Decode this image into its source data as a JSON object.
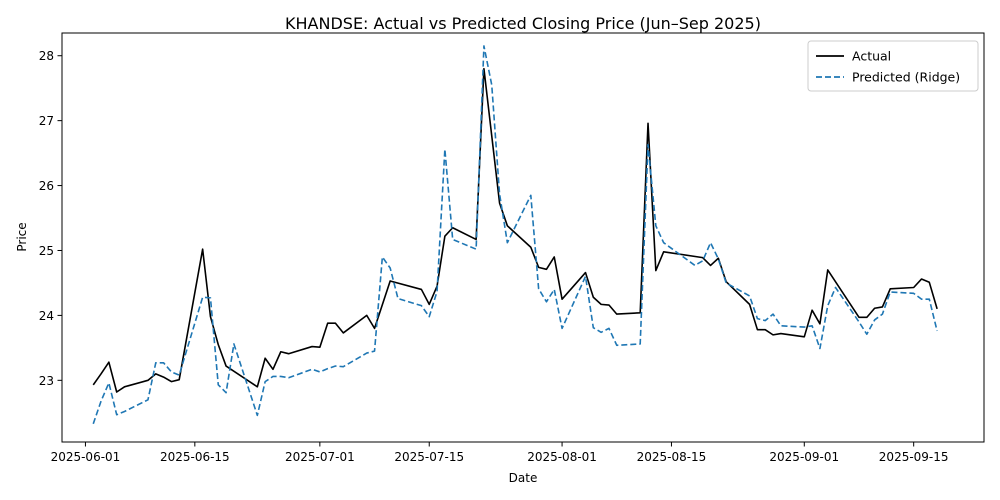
{
  "chart_data": {
    "type": "line",
    "title": "KHANDSE: Actual vs Predicted Closing Price (Jun–Sep 2025)",
    "xlabel": "Date",
    "ylabel": "Price",
    "xlim": [
      "2025-05-29",
      "2025-09-24"
    ],
    "ylim": [
      22.05,
      28.35
    ],
    "x_ticks": [
      "2025-06-01",
      "2025-06-15",
      "2025-07-01",
      "2025-07-15",
      "2025-08-01",
      "2025-08-15",
      "2025-09-01",
      "2025-09-15"
    ],
    "y_ticks": [
      23,
      24,
      25,
      26,
      27,
      28
    ],
    "grid": false,
    "legend": "top-right",
    "colors": {
      "actual": "#000000",
      "predicted": "#1f77b4"
    },
    "series": [
      {
        "name": "Actual",
        "style": "solid",
        "points": [
          [
            "2025-06-02",
            22.93
          ],
          [
            "2025-06-03",
            23.1
          ],
          [
            "2025-06-04",
            23.28
          ],
          [
            "2025-06-05",
            22.82
          ],
          [
            "2025-06-06",
            22.9
          ],
          [
            "2025-06-09",
            23.0
          ],
          [
            "2025-06-10",
            23.1
          ],
          [
            "2025-06-11",
            23.05
          ],
          [
            "2025-06-12",
            22.98
          ],
          [
            "2025-06-13",
            23.01
          ],
          [
            "2025-06-16",
            25.02
          ],
          [
            "2025-06-17",
            23.98
          ],
          [
            "2025-06-18",
            23.55
          ],
          [
            "2025-06-19",
            23.22
          ],
          [
            "2025-06-23",
            22.9
          ],
          [
            "2025-06-24",
            23.34
          ],
          [
            "2025-06-25",
            23.17
          ],
          [
            "2025-06-26",
            23.44
          ],
          [
            "2025-06-27",
            23.41
          ],
          [
            "2025-06-30",
            23.52
          ],
          [
            "2025-07-01",
            23.51
          ],
          [
            "2025-07-02",
            23.88
          ],
          [
            "2025-07-03",
            23.88
          ],
          [
            "2025-07-04",
            23.73
          ],
          [
            "2025-07-07",
            24.0
          ],
          [
            "2025-07-08",
            23.8
          ],
          [
            "2025-07-10",
            24.53
          ],
          [
            "2025-07-14",
            24.4
          ],
          [
            "2025-07-15",
            24.17
          ],
          [
            "2025-07-16",
            24.45
          ],
          [
            "2025-07-17",
            25.22
          ],
          [
            "2025-07-18",
            25.35
          ],
          [
            "2025-07-21",
            25.17
          ],
          [
            "2025-07-22",
            27.8
          ],
          [
            "2025-07-24",
            25.73
          ],
          [
            "2025-07-25",
            25.38
          ],
          [
            "2025-07-28",
            25.05
          ],
          [
            "2025-07-29",
            24.74
          ],
          [
            "2025-07-30",
            24.71
          ],
          [
            "2025-07-31",
            24.9
          ],
          [
            "2025-08-01",
            24.25
          ],
          [
            "2025-08-04",
            24.66
          ],
          [
            "2025-08-05",
            24.28
          ],
          [
            "2025-08-06",
            24.17
          ],
          [
            "2025-08-07",
            24.16
          ],
          [
            "2025-08-08",
            24.02
          ],
          [
            "2025-08-11",
            24.04
          ],
          [
            "2025-08-12",
            26.96
          ],
          [
            "2025-08-13",
            24.69
          ],
          [
            "2025-08-14",
            24.98
          ],
          [
            "2025-08-19",
            24.89
          ],
          [
            "2025-08-20",
            24.77
          ],
          [
            "2025-08-21",
            24.88
          ],
          [
            "2025-08-22",
            24.52
          ],
          [
            "2025-08-25",
            24.17
          ],
          [
            "2025-08-26",
            23.78
          ],
          [
            "2025-08-27",
            23.78
          ],
          [
            "2025-08-28",
            23.7
          ],
          [
            "2025-08-29",
            23.72
          ],
          [
            "2025-09-01",
            23.67
          ],
          [
            "2025-09-02",
            24.08
          ],
          [
            "2025-09-03",
            23.87
          ],
          [
            "2025-09-04",
            24.7
          ],
          [
            "2025-09-08",
            23.97
          ],
          [
            "2025-09-09",
            23.97
          ],
          [
            "2025-09-10",
            24.11
          ],
          [
            "2025-09-11",
            24.13
          ],
          [
            "2025-09-12",
            24.41
          ],
          [
            "2025-09-15",
            24.43
          ],
          [
            "2025-09-16",
            24.56
          ],
          [
            "2025-09-17",
            24.51
          ],
          [
            "2025-09-18",
            24.1
          ]
        ]
      },
      {
        "name": "Predicted (Ridge)",
        "style": "dashed",
        "points": [
          [
            "2025-06-02",
            22.33
          ],
          [
            "2025-06-03",
            22.68
          ],
          [
            "2025-06-04",
            22.96
          ],
          [
            "2025-06-05",
            22.47
          ],
          [
            "2025-06-06",
            22.52
          ],
          [
            "2025-06-09",
            22.7
          ],
          [
            "2025-06-10",
            23.27
          ],
          [
            "2025-06-11",
            23.27
          ],
          [
            "2025-06-12",
            23.13
          ],
          [
            "2025-06-13",
            23.08
          ],
          [
            "2025-06-16",
            24.28
          ],
          [
            "2025-06-17",
            24.27
          ],
          [
            "2025-06-18",
            22.93
          ],
          [
            "2025-06-19",
            22.81
          ],
          [
            "2025-06-20",
            23.56
          ],
          [
            "2025-06-23",
            22.46
          ],
          [
            "2025-06-24",
            22.98
          ],
          [
            "2025-06-25",
            23.06
          ],
          [
            "2025-06-26",
            23.06
          ],
          [
            "2025-06-27",
            23.04
          ],
          [
            "2025-06-30",
            23.17
          ],
          [
            "2025-07-01",
            23.13
          ],
          [
            "2025-07-02",
            23.18
          ],
          [
            "2025-07-03",
            23.22
          ],
          [
            "2025-07-04",
            23.21
          ],
          [
            "2025-07-07",
            23.42
          ],
          [
            "2025-07-08",
            23.45
          ],
          [
            "2025-07-09",
            24.9
          ],
          [
            "2025-07-10",
            24.73
          ],
          [
            "2025-07-11",
            24.26
          ],
          [
            "2025-07-14",
            24.15
          ],
          [
            "2025-07-15",
            23.98
          ],
          [
            "2025-07-16",
            24.37
          ],
          [
            "2025-07-17",
            26.56
          ],
          [
            "2025-07-18",
            25.17
          ],
          [
            "2025-07-21",
            25.02
          ],
          [
            "2025-07-22",
            28.15
          ],
          [
            "2025-07-23",
            27.55
          ],
          [
            "2025-07-24",
            25.87
          ],
          [
            "2025-07-25",
            25.12
          ],
          [
            "2025-07-28",
            25.85
          ],
          [
            "2025-07-29",
            24.41
          ],
          [
            "2025-07-30",
            24.21
          ],
          [
            "2025-07-31",
            24.4
          ],
          [
            "2025-08-01",
            23.8
          ],
          [
            "2025-08-04",
            24.6
          ],
          [
            "2025-08-05",
            23.81
          ],
          [
            "2025-08-06",
            23.74
          ],
          [
            "2025-08-07",
            23.8
          ],
          [
            "2025-08-08",
            23.54
          ],
          [
            "2025-08-11",
            23.56
          ],
          [
            "2025-08-12",
            26.63
          ],
          [
            "2025-08-13",
            25.38
          ],
          [
            "2025-08-14",
            25.12
          ],
          [
            "2025-08-18",
            24.77
          ],
          [
            "2025-08-19",
            24.84
          ],
          [
            "2025-08-20",
            25.12
          ],
          [
            "2025-08-21",
            24.87
          ],
          [
            "2025-08-22",
            24.5
          ],
          [
            "2025-08-25",
            24.3
          ],
          [
            "2025-08-26",
            23.95
          ],
          [
            "2025-08-27",
            23.92
          ],
          [
            "2025-08-28",
            24.02
          ],
          [
            "2025-08-29",
            23.84
          ],
          [
            "2025-09-01",
            23.82
          ],
          [
            "2025-09-02",
            23.84
          ],
          [
            "2025-09-03",
            23.49
          ],
          [
            "2025-09-04",
            24.15
          ],
          [
            "2025-09-05",
            24.43
          ],
          [
            "2025-09-08",
            23.9
          ],
          [
            "2025-09-09",
            23.71
          ],
          [
            "2025-09-10",
            23.93
          ],
          [
            "2025-09-11",
            24.02
          ],
          [
            "2025-09-12",
            24.36
          ],
          [
            "2025-09-15",
            24.34
          ],
          [
            "2025-09-16",
            24.25
          ],
          [
            "2025-09-17",
            24.25
          ],
          [
            "2025-09-18",
            23.76
          ]
        ]
      }
    ]
  }
}
